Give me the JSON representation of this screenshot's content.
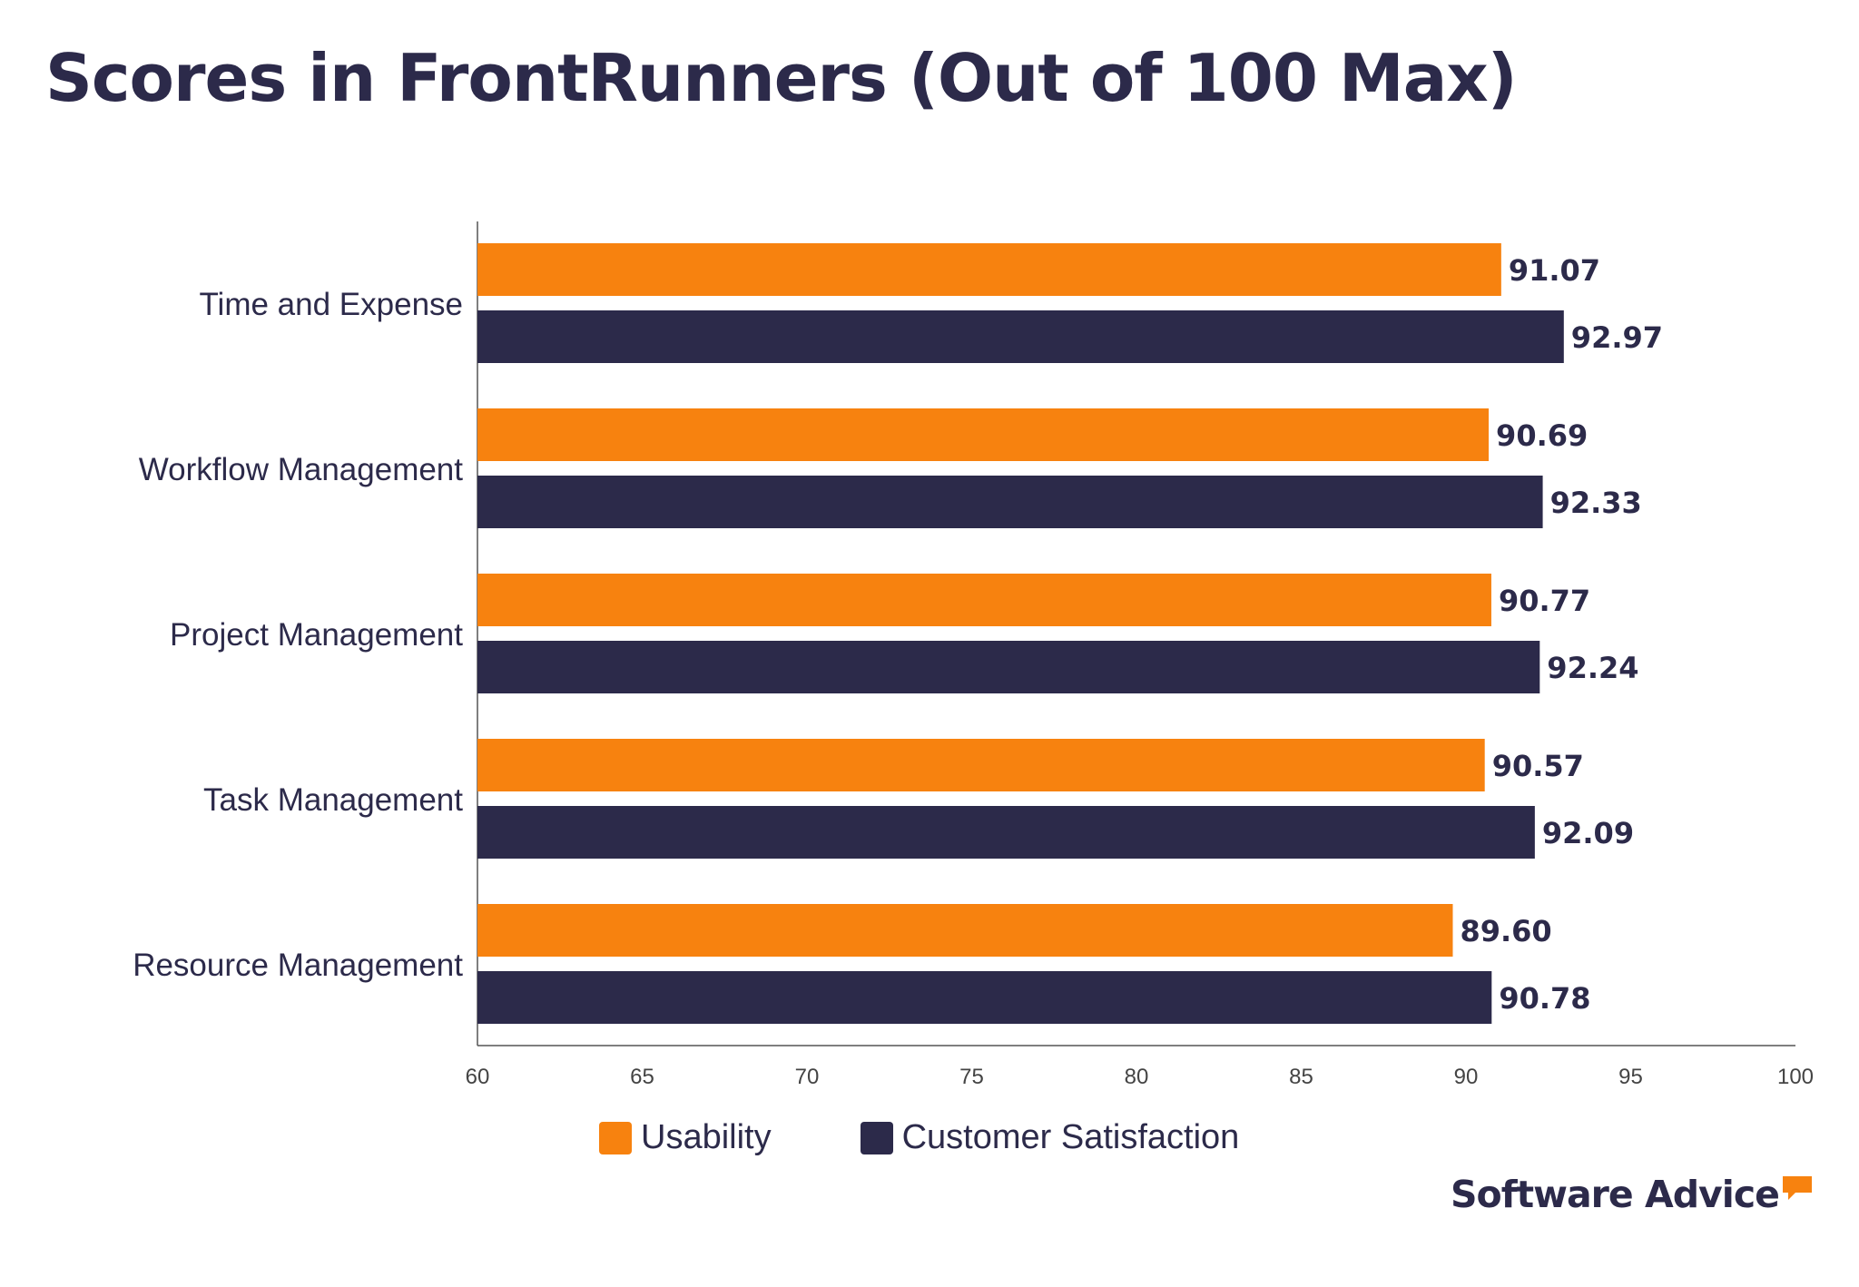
{
  "title": "Scores in FrontRunners (Out of 100 Max)",
  "colors": {
    "usability": "#f7820f",
    "customer_satisfaction": "#2c2a4a",
    "axis": "#555555",
    "text": "#2c2a4a"
  },
  "legend": {
    "items": [
      {
        "label": "Usability"
      },
      {
        "label": "Customer Satisfaction"
      }
    ]
  },
  "brand": {
    "name": "Software Advice",
    "icon": "speech-bubble-icon"
  },
  "chart_data": {
    "type": "bar",
    "orientation": "horizontal",
    "title": "Scores in FrontRunners (Out of 100 Max)",
    "categories": [
      "Time and Expense",
      "Workflow Management",
      "Project Management",
      "Task Management",
      "Resource Management"
    ],
    "series": [
      {
        "name": "Usability",
        "values": [
          91.07,
          90.69,
          90.77,
          90.57,
          89.6
        ],
        "labels": [
          "91.07",
          "90.69",
          "90.77",
          "90.57",
          "89.60"
        ]
      },
      {
        "name": "Customer Satisfaction",
        "values": [
          92.97,
          92.33,
          92.24,
          92.09,
          90.78
        ],
        "labels": [
          "92.97",
          "92.33",
          "92.24",
          "92.09",
          "90.78"
        ]
      }
    ],
    "xlim": [
      60,
      100
    ],
    "xticks": [
      "60",
      "65",
      "70",
      "75",
      "80",
      "85",
      "90",
      "95",
      "100"
    ],
    "xlabel": "",
    "ylabel": "",
    "grid": false,
    "legend_position": "bottom-center"
  }
}
